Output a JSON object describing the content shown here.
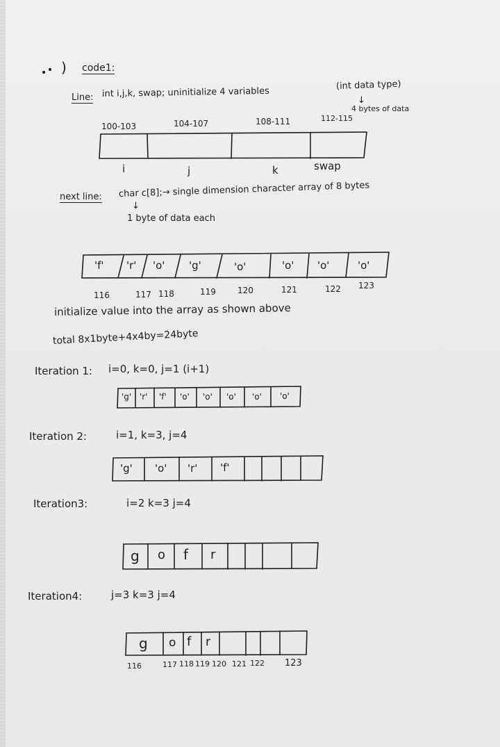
{
  "heading": {
    "bullet": ")",
    "title": "code1:"
  },
  "line1": {
    "label": "Line:",
    "statement": "int  i,j,k, swap;  uninitialize  4 variables",
    "note": "(int data type)",
    "arrow": "↓",
    "sub_note": "4 bytes of data"
  },
  "mem1": {
    "addresses": [
      "100-103",
      "104-107",
      "108-111",
      "112-115"
    ],
    "names": [
      "i",
      "j",
      "k",
      "swap"
    ]
  },
  "line2": {
    "label": "next line:",
    "statement": "char c[8];→ single dimension character array of 8 bytes",
    "arrow": "↓",
    "sub_note": "1 byte of data each"
  },
  "array1": {
    "values": [
      "'f'",
      "'r'",
      "'o'",
      "'g'",
      "'o'",
      "'o'",
      "'o'",
      "'o'"
    ],
    "addresses": [
      "116",
      "117",
      "118",
      "119",
      "120",
      "121",
      "122",
      "123"
    ]
  },
  "notes": {
    "initialize": "initialize value into the array as shown above",
    "total": "total  8x1byte+4x4by=24byte"
  },
  "iterations": [
    {
      "label": "Iteration 1:",
      "values_text": "i=0,  k=0,  j=1  (i+1)",
      "cells": [
        "'g'",
        "'r'",
        "'f'",
        "'o'",
        "'o'",
        "'o'",
        "'o'",
        "'o'"
      ]
    },
    {
      "label": "Iteration 2:",
      "values_text": "i=1,  k=3,  j=4",
      "cells": [
        "'g'",
        "'o'",
        "'r'",
        "'f'",
        "",
        "",
        "",
        ""
      ]
    },
    {
      "label": "Iteration3:",
      "values_text": "i=2  k=3  j=4",
      "cells": [
        "g",
        "o",
        "f",
        "r",
        "",
        "",
        "",
        ""
      ]
    },
    {
      "label": "Iteration4:",
      "values_text": "j=3  k=3  j=4",
      "cells": [
        "g",
        "o",
        "f",
        "r",
        "",
        "",
        "",
        ""
      ]
    }
  ],
  "final_addresses": [
    "116",
    "117",
    "118",
    "119",
    "120",
    "121",
    "122",
    "123"
  ]
}
